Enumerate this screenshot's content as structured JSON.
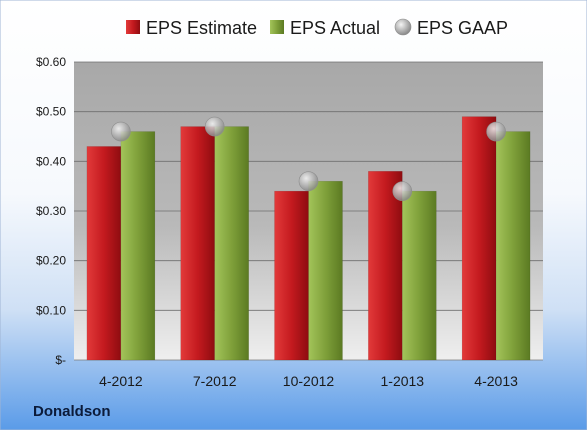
{
  "company": "Donaldson",
  "chart_data": {
    "type": "bar",
    "categories": [
      "4-2012",
      "7-2012",
      "10-2012",
      "1-2013",
      "4-2013"
    ],
    "series": [
      {
        "name": "EPS Estimate",
        "type": "bar",
        "color": "#c0161c",
        "values": [
          0.43,
          0.47,
          0.34,
          0.38,
          0.49
        ]
      },
      {
        "name": "EPS Actual",
        "type": "bar",
        "color": "#7a9a35",
        "values": [
          0.46,
          0.47,
          0.36,
          0.34,
          0.46
        ]
      },
      {
        "name": "EPS GAAP",
        "type": "scatter",
        "color": "#a9a9a9",
        "values": [
          0.46,
          0.47,
          0.36,
          0.34,
          0.46
        ]
      }
    ],
    "ylim": [
      0,
      0.6
    ],
    "yticks": [
      0,
      0.1,
      0.2,
      0.3,
      0.4,
      0.5,
      0.6
    ],
    "ytick_labels": [
      "$-",
      "$0.10",
      "$0.20",
      "$0.30",
      "$0.40",
      "$0.50",
      "$0.60"
    ],
    "grid": true,
    "legend": "top"
  }
}
